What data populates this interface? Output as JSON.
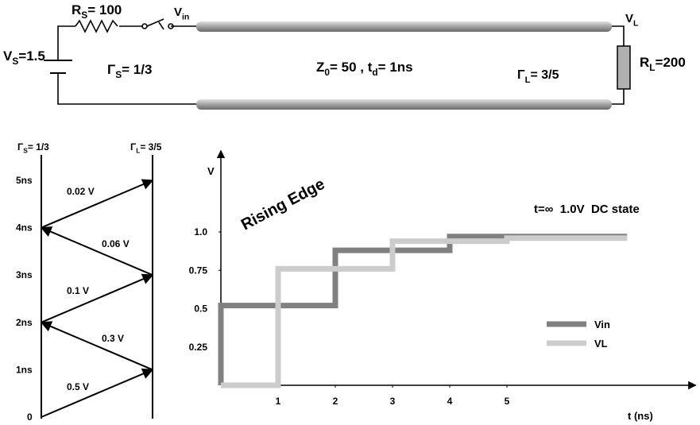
{
  "circuit": {
    "vs": [
      "V",
      "S",
      "=1.5"
    ],
    "rs": [
      "R",
      "S",
      "= 100"
    ],
    "vin": [
      "V",
      "in"
    ],
    "vl": [
      "V",
      "L"
    ],
    "rl": [
      "R",
      "L",
      "=200"
    ],
    "gamma_s": [
      "Γ",
      "S",
      "= 1/3"
    ],
    "line": [
      "Z",
      "0",
      "= 50 , t",
      "d",
      "= 1ns"
    ],
    "gamma_l": [
      "Γ",
      "L",
      "= 3/5"
    ]
  },
  "bounce": {
    "gamma_s": [
      "Γ",
      "S",
      "= 1/3"
    ],
    "gamma_l": [
      "Γ",
      "L",
      "= 3/5"
    ],
    "times": [
      "0",
      "1ns",
      "2ns",
      "3ns",
      "4ns",
      "5ns"
    ],
    "waves": [
      "0.5 V",
      "0.3 V",
      "0.1 V",
      "0.06 V",
      "0.02 V"
    ]
  },
  "chart_data": {
    "type": "line",
    "ylabel": "V",
    "xlabel": "t (ns)",
    "annotations": [
      "Rising Edge",
      "t=∞  1.0V  DC state"
    ],
    "series": [
      {
        "name": "Vin",
        "color": "#808080",
        "x": [
          0,
          0,
          2,
          2,
          4,
          4,
          7.1
        ],
        "values": [
          0,
          0.52,
          0.52,
          0.88,
          0.88,
          0.97,
          0.97
        ]
      },
      {
        "name": "VL",
        "color": "#cccccc",
        "x": [
          0,
          1,
          1,
          3,
          3,
          5,
          5,
          7.1
        ],
        "values": [
          0,
          0,
          0.76,
          0.76,
          0.94,
          0.94,
          0.96,
          0.96
        ]
      }
    ],
    "xlim": [
      0,
      8.3
    ],
    "ylim": [
      0,
      1.53
    ],
    "xticks": [
      1,
      2,
      3,
      4,
      5
    ],
    "yticks": [
      {
        "value": 1,
        "label": "1.0"
      },
      0.75,
      0.5,
      0.25
    ],
    "legend": "center-right"
  }
}
